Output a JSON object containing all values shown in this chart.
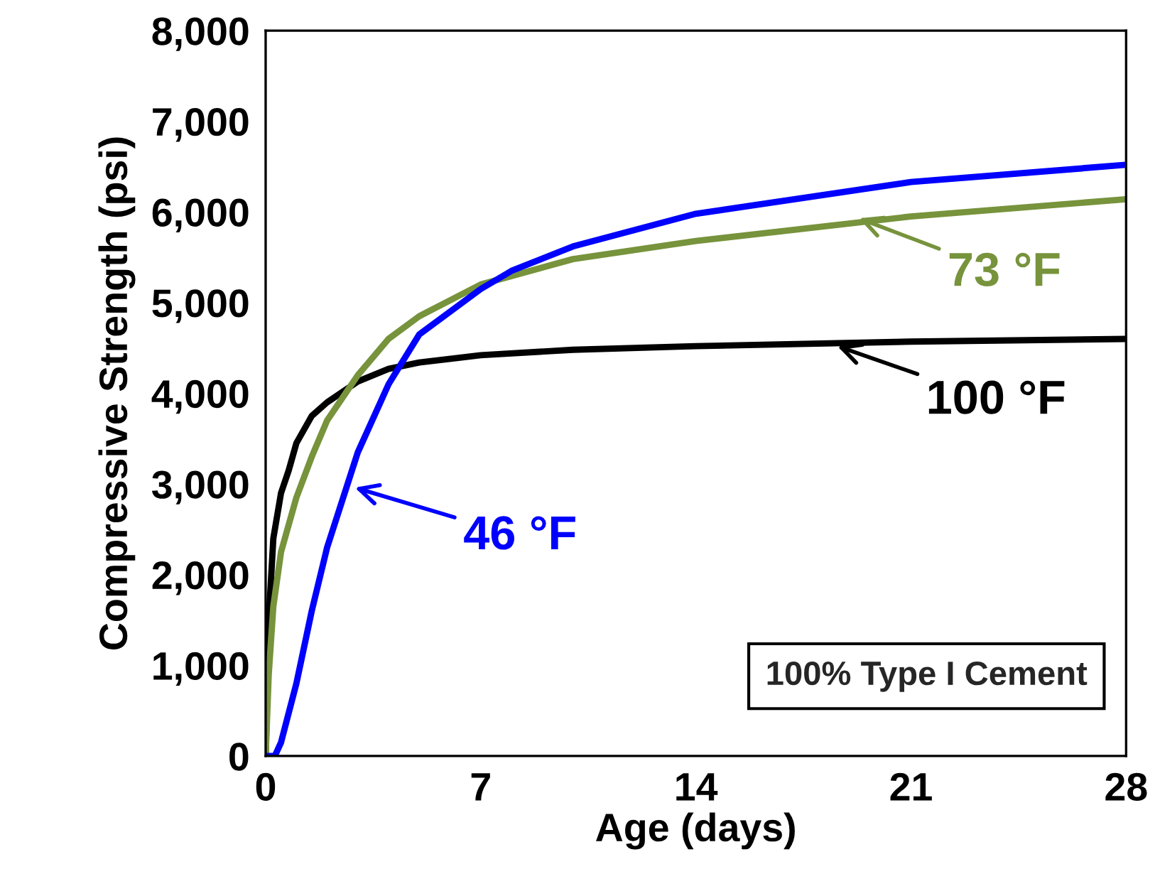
{
  "chart_data": {
    "type": "line",
    "xlabel": "Age (days)",
    "ylabel": "Compressive Strength (psi)",
    "xlim": [
      0,
      28
    ],
    "xticks": [
      0,
      7,
      14,
      21,
      28
    ],
    "ylim": [
      0,
      8000
    ],
    "yticks": [
      {
        "value": 0,
        "label": "0"
      },
      {
        "value": 1000,
        "label": "1,000"
      },
      {
        "value": 2000,
        "label": "2,000"
      },
      {
        "value": 3000,
        "label": "3,000"
      },
      {
        "value": 4000,
        "label": "4,000"
      },
      {
        "value": 5000,
        "label": "5,000"
      },
      {
        "value": 6000,
        "label": "6,000"
      },
      {
        "value": 7000,
        "label": "7,000"
      },
      {
        "value": 8000,
        "label": "8,000"
      }
    ],
    "grid": false,
    "marker": "none",
    "line_style": "solid",
    "series": [
      {
        "color": "#000000",
        "x": [
          0,
          0.1,
          0.25,
          0.5,
          0.75,
          1,
          1.5,
          2,
          3,
          4,
          5,
          7,
          10,
          14,
          21,
          28
        ],
        "values": [
          0,
          1500,
          2400,
          2900,
          3150,
          3450,
          3750,
          3900,
          4130,
          4270,
          4340,
          4420,
          4480,
          4520,
          4570,
          4600
        ]
      },
      {
        "color": "#77933c",
        "x": [
          0,
          0.1,
          0.25,
          0.5,
          1,
          1.5,
          2,
          3,
          4,
          5,
          7,
          10,
          14,
          21,
          28
        ],
        "values": [
          0,
          900,
          1650,
          2250,
          2850,
          3300,
          3700,
          4200,
          4600,
          4850,
          5200,
          5480,
          5680,
          5950,
          6140
        ]
      },
      {
        "color": "#0000ff",
        "x": [
          0,
          0.3,
          0.5,
          1,
          1.5,
          2,
          3,
          4,
          5,
          7,
          8,
          10,
          14,
          21,
          28
        ],
        "values": [
          0,
          0,
          150,
          800,
          1600,
          2300,
          3350,
          4100,
          4650,
          5150,
          5350,
          5620,
          5980,
          6330,
          6520
        ]
      }
    ],
    "annotations": [
      {
        "text": "46 °F",
        "x": 2.9,
        "y": 2960
      },
      {
        "text": "73 °F",
        "x": 19.3,
        "y": 5930
      },
      {
        "text": "100 °F",
        "x": 18.6,
        "y": 4520
      },
      "100% Type I Cement"
    ]
  }
}
